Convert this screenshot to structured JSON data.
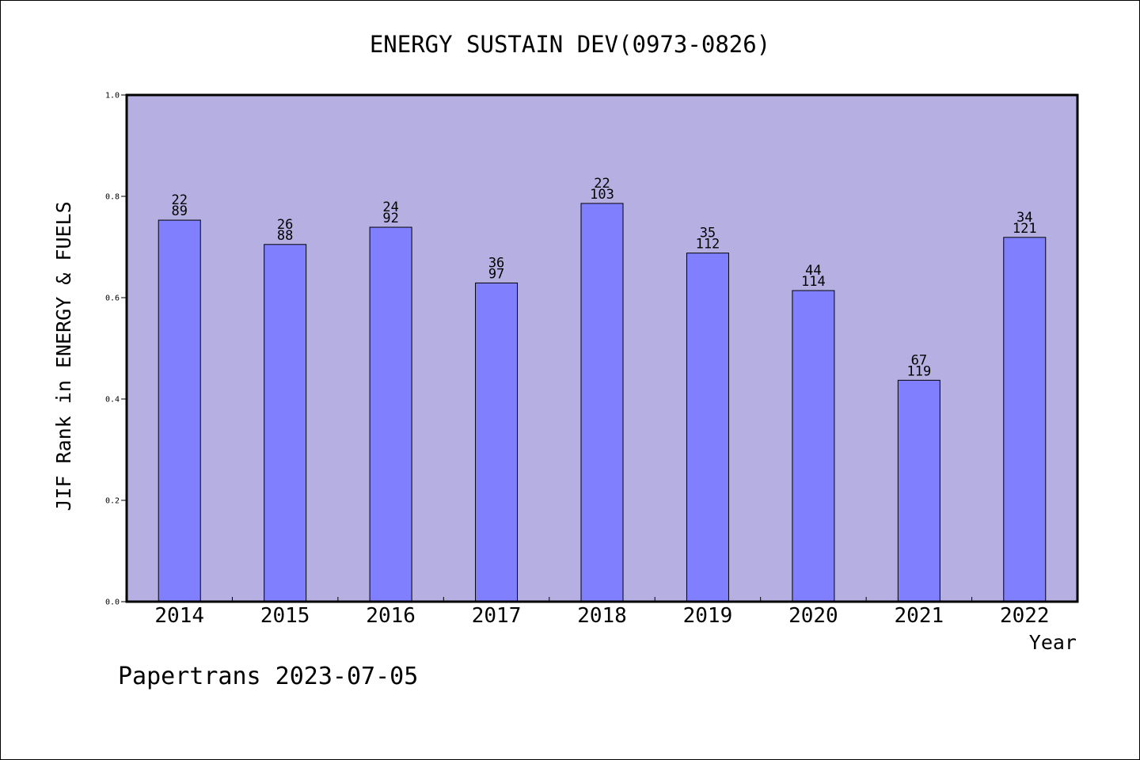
{
  "chart_data": {
    "type": "bar",
    "title": "ENERGY SUSTAIN DEV(0973-0826)",
    "xlabel": "Year",
    "ylabel": "JIF Rank in ENERGY & FUELS",
    "categories": [
      "2014",
      "2015",
      "2016",
      "2017",
      "2018",
      "2019",
      "2020",
      "2021",
      "2022"
    ],
    "values": [
      0.753,
      0.705,
      0.739,
      0.629,
      0.786,
      0.688,
      0.614,
      0.437,
      0.719
    ],
    "rank": [
      "22",
      "26",
      "24",
      "36",
      "22",
      "35",
      "44",
      "67",
      "34"
    ],
    "total": [
      "89",
      "88",
      "92",
      "97",
      "103",
      "112",
      "114",
      "119",
      "121"
    ],
    "ylim": [
      0,
      1.0
    ],
    "yticks": [
      "0.0",
      "0.2",
      "0.4",
      "0.6",
      "0.8",
      "1.0"
    ],
    "grid": false,
    "legend": "none",
    "colors": {
      "plot_background": "#b6b0e2",
      "bar": "#8080ff",
      "axis": "#000000"
    }
  },
  "footer": {
    "credit": "Papertrans 2023-07-05"
  }
}
